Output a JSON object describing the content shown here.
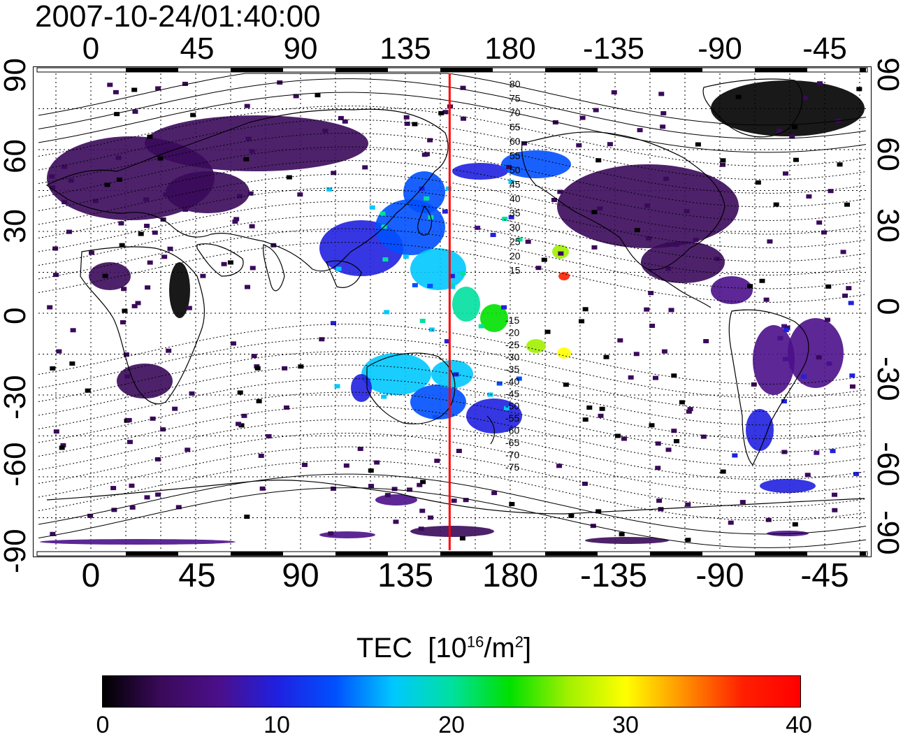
{
  "title": "2007-10-24/01:40:00",
  "axes": {
    "lon_ticks_top": [
      "0",
      "45",
      "90",
      "135",
      "180",
      "-135",
      "-90",
      "-45"
    ],
    "lon_ticks_bottom": [
      "0",
      "45",
      "90",
      "135",
      "180",
      "-135",
      "-90",
      "-45"
    ],
    "lat_ticks_left": [
      "90",
      "60",
      "30",
      "0",
      "-30",
      "-60",
      "-90"
    ],
    "lat_ticks_right": [
      "90",
      "60",
      "30",
      "0",
      "-30",
      "-60",
      "-90"
    ]
  },
  "contour_labels": {
    "north": [
      "80",
      "75",
      "70",
      "65",
      "60",
      "55",
      "50",
      "45",
      "40",
      "35",
      "30",
      "25",
      "20",
      "15"
    ],
    "south": [
      "-15",
      "-20",
      "-25",
      "-30",
      "-35",
      "-40",
      "-45",
      "-50",
      "-55",
      "-60",
      "-65",
      "-70",
      "-75"
    ]
  },
  "colorbar": {
    "label": "TEC",
    "unit_base": "[10",
    "unit_exp": "16",
    "unit_mid": "/m",
    "unit_exp2": "2",
    "unit_end": "]",
    "ticks": [
      "0",
      "10",
      "20",
      "30",
      "40"
    ],
    "range": [
      0,
      40
    ],
    "colors": [
      "#000000",
      "#3a0a5a",
      "#4b0f8a",
      "#2020e0",
      "#0050ff",
      "#00c8ff",
      "#00e0a0",
      "#00e000",
      "#a0f000",
      "#ffff00",
      "#ff9000",
      "#ff2000",
      "#ff0000"
    ]
  },
  "map": {
    "central_meridian_line_color": "#ff0000",
    "central_meridian_lon": 154
  }
}
